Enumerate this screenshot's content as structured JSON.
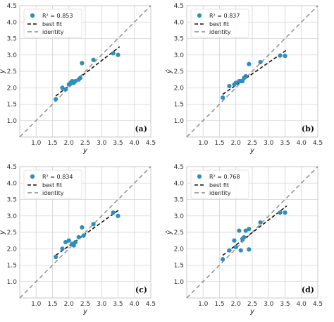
{
  "chart_data": [
    {
      "type": "scatter",
      "panel_label": "(a)",
      "xlabel": "y",
      "ylabel": "ŷ",
      "xlim": [
        0.5,
        4.5
      ],
      "ylim": [
        0.5,
        4.5
      ],
      "ticks": [
        "1.0",
        "1.5",
        "2.0",
        "2.5",
        "3.0",
        "3.5",
        "4.0",
        "4.5"
      ],
      "grid": true,
      "legend": {
        "placement": "top-left",
        "r2_label": "R² = 0.853",
        "fit_label": "best fit",
        "identity_label": "identity"
      },
      "points": [
        [
          1.6,
          1.65
        ],
        [
          1.8,
          2.0
        ],
        [
          1.9,
          1.95
        ],
        [
          2.0,
          2.1
        ],
        [
          2.05,
          2.15
        ],
        [
          2.1,
          2.2
        ],
        [
          2.15,
          2.15
        ],
        [
          2.2,
          2.2
        ],
        [
          2.3,
          2.25
        ],
        [
          2.35,
          2.3
        ],
        [
          2.4,
          2.75
        ],
        [
          2.75,
          2.85
        ],
        [
          3.35,
          3.05
        ],
        [
          3.5,
          3.0
        ]
      ],
      "fit": [
        [
          1.6,
          1.75
        ],
        [
          3.55,
          3.25
        ]
      ]
    },
    {
      "type": "scatter",
      "panel_label": "(b)",
      "xlabel": "y",
      "ylabel": "ŷ",
      "xlim": [
        0.5,
        4.5
      ],
      "ylim": [
        0.5,
        4.5
      ],
      "ticks": [
        "1.0",
        "1.5",
        "2.0",
        "2.5",
        "3.0",
        "3.5",
        "4.0",
        "4.5"
      ],
      "grid": true,
      "legend": {
        "placement": "top-left",
        "r2_label": "R² = 0.837",
        "fit_label": "best fit",
        "identity_label": "identity"
      },
      "points": [
        [
          1.6,
          1.7
        ],
        [
          1.8,
          2.05
        ],
        [
          1.95,
          2.1
        ],
        [
          2.0,
          2.15
        ],
        [
          2.1,
          2.2
        ],
        [
          2.15,
          2.2
        ],
        [
          2.2,
          2.2
        ],
        [
          2.25,
          2.3
        ],
        [
          2.3,
          2.35
        ],
        [
          2.4,
          2.72
        ],
        [
          2.75,
          2.78
        ],
        [
          3.35,
          2.98
        ],
        [
          3.5,
          2.97
        ]
      ],
      "fit": [
        [
          1.6,
          1.8
        ],
        [
          3.55,
          3.15
        ]
      ]
    },
    {
      "type": "scatter",
      "panel_label": "(c)",
      "xlabel": "y",
      "ylabel": "ŷ",
      "xlim": [
        0.5,
        4.5
      ],
      "ylim": [
        0.5,
        4.5
      ],
      "ticks": [
        "1.0",
        "1.5",
        "2.0",
        "2.5",
        "3.0",
        "3.5",
        "4.0",
        "4.5"
      ],
      "grid": true,
      "legend": {
        "placement": "top-left",
        "r2_label": "R² = 0.834",
        "fit_label": "best fit",
        "identity_label": "identity"
      },
      "points": [
        [
          1.6,
          1.75
        ],
        [
          1.8,
          2.0
        ],
        [
          1.9,
          2.2
        ],
        [
          2.0,
          2.25
        ],
        [
          2.1,
          2.15
        ],
        [
          2.15,
          2.1
        ],
        [
          2.2,
          2.2
        ],
        [
          2.3,
          2.35
        ],
        [
          2.4,
          2.65
        ],
        [
          2.45,
          2.4
        ],
        [
          2.75,
          2.75
        ],
        [
          3.35,
          3.1
        ],
        [
          3.5,
          3.0
        ]
      ],
      "fit": [
        [
          1.6,
          1.8
        ],
        [
          3.55,
          3.2
        ]
      ]
    },
    {
      "type": "scatter",
      "panel_label": "(d)",
      "xlabel": "y",
      "ylabel": "ŷ",
      "xlim": [
        0.5,
        4.5
      ],
      "ylim": [
        0.5,
        4.5
      ],
      "ticks": [
        "1.0",
        "1.5",
        "2.0",
        "2.5",
        "3.0",
        "3.5",
        "4.0",
        "4.5"
      ],
      "grid": true,
      "legend": {
        "placement": "top-left",
        "r2_label": "R² = 0.768",
        "fit_label": "best fit",
        "identity_label": "identity"
      },
      "points": [
        [
          1.6,
          1.68
        ],
        [
          1.8,
          1.95
        ],
        [
          1.95,
          2.25
        ],
        [
          2.0,
          2.05
        ],
        [
          2.1,
          2.55
        ],
        [
          2.15,
          1.95
        ],
        [
          2.2,
          2.3
        ],
        [
          2.25,
          2.35
        ],
        [
          2.3,
          2.55
        ],
        [
          2.4,
          2.6
        ],
        [
          2.4,
          1.98
        ],
        [
          2.75,
          2.8
        ],
        [
          3.35,
          3.1
        ],
        [
          3.5,
          3.1
        ]
      ],
      "fit": [
        [
          1.6,
          1.8
        ],
        [
          3.55,
          3.3
        ]
      ]
    }
  ],
  "colors": {
    "points": "#2f8ebc",
    "fit": "#111111",
    "identity": "#888888",
    "grid": "#d3d3d3",
    "frame": "#c8c8c8"
  }
}
